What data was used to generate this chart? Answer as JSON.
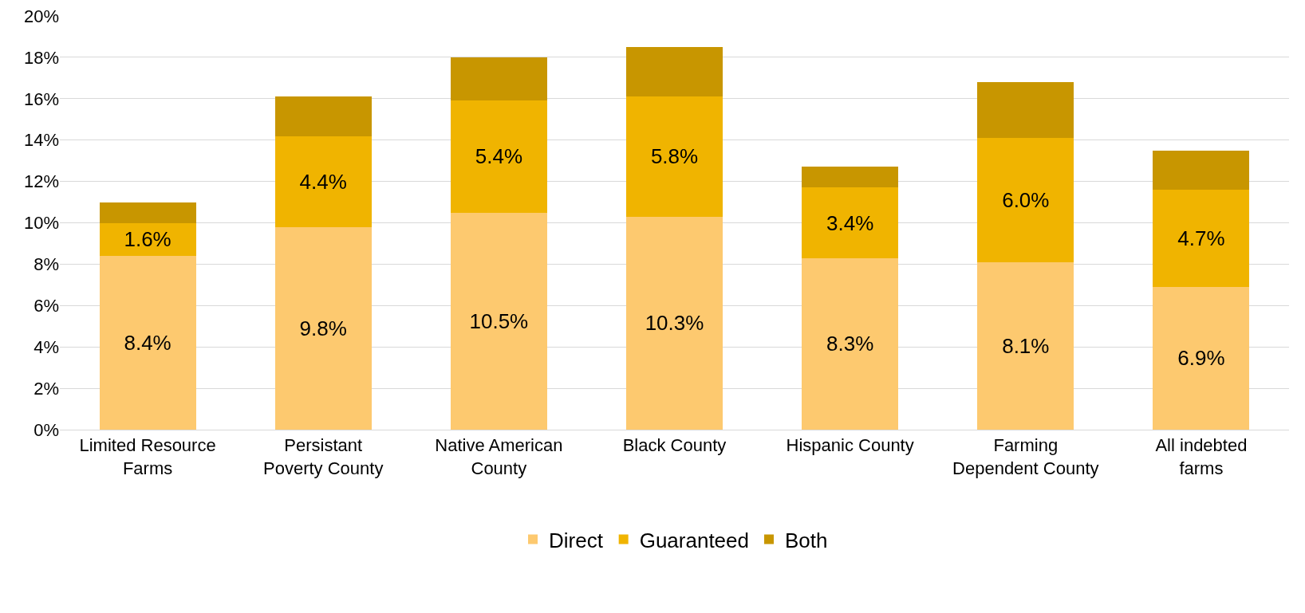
{
  "chart_data": {
    "type": "bar",
    "stacked": true,
    "categories": [
      "Limited Resource Farms",
      "Persistant Poverty County",
      "Native American County",
      "Black County",
      "Hispanic County",
      "Farming Dependent County",
      "All indebted farms"
    ],
    "series": [
      {
        "name": "Direct",
        "color": "#fdc96f",
        "values": [
          8.4,
          9.8,
          10.5,
          10.3,
          8.3,
          8.1,
          6.9
        ],
        "value_labels": [
          "8.4%",
          "9.8%",
          "10.5%",
          "10.3%",
          "8.3%",
          "8.1%",
          "6.9%"
        ]
      },
      {
        "name": "Guaranteed",
        "color": "#f0b400",
        "values": [
          1.6,
          4.4,
          5.4,
          5.8,
          3.4,
          6.0,
          4.7
        ],
        "value_labels": [
          "1.6%",
          "4.4%",
          "5.4%",
          "5.8%",
          "3.4%",
          "6.0%",
          "4.7%"
        ]
      },
      {
        "name": "Both",
        "color": "#c89600",
        "values": [
          1.0,
          1.9,
          2.1,
          2.4,
          1.0,
          2.7,
          1.9
        ]
      }
    ],
    "ylim": [
      0,
      20
    ],
    "yticks": [
      {
        "value": 0,
        "label": "0%"
      },
      {
        "value": 2,
        "label": "2%"
      },
      {
        "value": 4,
        "label": "4%"
      },
      {
        "value": 6,
        "label": "6%"
      },
      {
        "value": 8,
        "label": "8%"
      },
      {
        "value": 10,
        "label": "10%"
      },
      {
        "value": 12,
        "label": "12%"
      },
      {
        "value": 14,
        "label": "14%"
      },
      {
        "value": 16,
        "label": "16%"
      },
      {
        "value": 18,
        "label": "18%"
      },
      {
        "value": 20,
        "label": "20%"
      }
    ],
    "grid": "y",
    "legend": "bottom"
  }
}
